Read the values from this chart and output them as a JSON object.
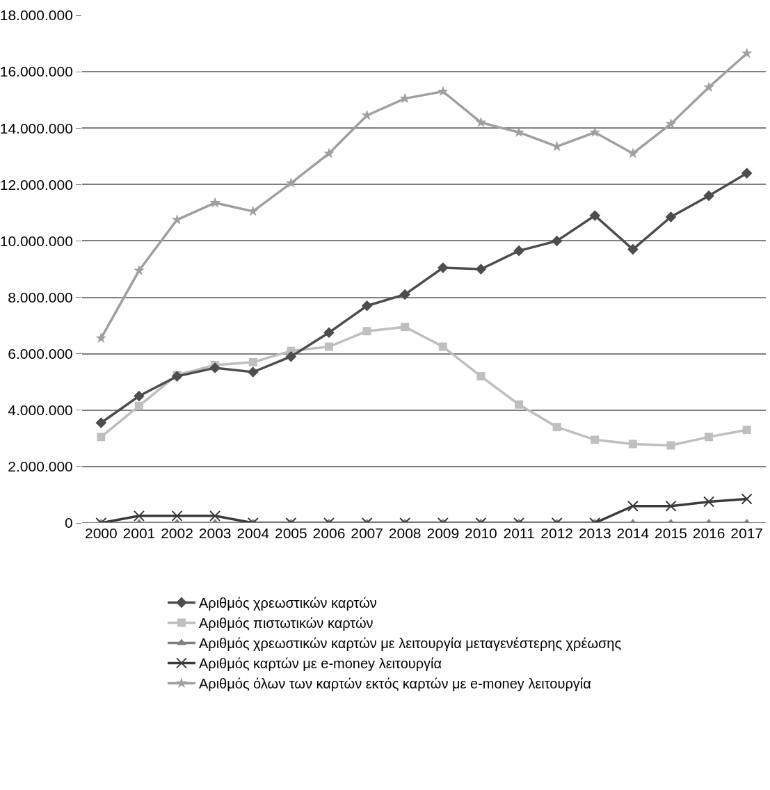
{
  "chart_data": {
    "type": "line",
    "categories": [
      "2000",
      "2001",
      "2002",
      "2003",
      "2004",
      "2005",
      "2006",
      "2007",
      "2008",
      "2009",
      "2010",
      "2011",
      "2012",
      "2013",
      "2014",
      "2015",
      "2016",
      "2017"
    ],
    "series": [
      {
        "name": "Αριθμός χρεωστικών καρτών",
        "color": "#4d4d4d",
        "marker": "diamond",
        "values": [
          3550000,
          4500000,
          5200000,
          5500000,
          5350000,
          5900000,
          6750000,
          7700000,
          8100000,
          9050000,
          9000000,
          9650000,
          10000000,
          10900000,
          9700000,
          10850000,
          11600000,
          12400000
        ]
      },
      {
        "name": "Αριθμός πιστωτικών καρτών",
        "color": "#bfbfbf",
        "marker": "square",
        "values": [
          3050000,
          4150000,
          5250000,
          5600000,
          5700000,
          6100000,
          6250000,
          6800000,
          6950000,
          6250000,
          5200000,
          4200000,
          3400000,
          2950000,
          2800000,
          2750000,
          3050000,
          3300000
        ]
      },
      {
        "name": "Αριθμός χρεωστικών καρτών με λειτουργία μεταγενέστερης χρέωσης",
        "color": "#7f7f7f",
        "marker": "triangle",
        "values": [
          0,
          0,
          0,
          0,
          0,
          0,
          0,
          0,
          0,
          0,
          0,
          0,
          0,
          0,
          0,
          0,
          0,
          0
        ]
      },
      {
        "name": "Αριθμός καρτών με e-money λειτουργία",
        "color": "#3a3a3a",
        "marker": "cross",
        "values": [
          0,
          250000,
          250000,
          250000,
          0,
          0,
          0,
          0,
          0,
          0,
          0,
          0,
          0,
          0,
          600000,
          600000,
          750000,
          850000
        ]
      },
      {
        "name": "Αριθμός όλων των καρτών εκτός καρτών με e-money λειτουργία",
        "color": "#a0a0a0",
        "marker": "star",
        "values": [
          6550000,
          8950000,
          10750000,
          11350000,
          11050000,
          12050000,
          13100000,
          14450000,
          15050000,
          15300000,
          14200000,
          13850000,
          13350000,
          13850000,
          13100000,
          14150000,
          15450000,
          16650000
        ]
      }
    ],
    "ylim": [
      0,
      18000000
    ],
    "yticks": [
      {
        "value": 0,
        "label": "0"
      },
      {
        "value": 2000000,
        "label": "2.000.000"
      },
      {
        "value": 4000000,
        "label": "4.000.000"
      },
      {
        "value": 6000000,
        "label": "6.000.000"
      },
      {
        "value": 8000000,
        "label": "8.000.000"
      },
      {
        "value": 10000000,
        "label": "10.000.000"
      },
      {
        "value": 12000000,
        "label": "12.000.000"
      },
      {
        "value": 14000000,
        "label": "14.000.000"
      },
      {
        "value": 16000000,
        "label": "16.000.000"
      },
      {
        "value": 18000000,
        "label": "18.000.000"
      }
    ],
    "grid": "y",
    "legend": "bottom",
    "line_style": "solid"
  }
}
